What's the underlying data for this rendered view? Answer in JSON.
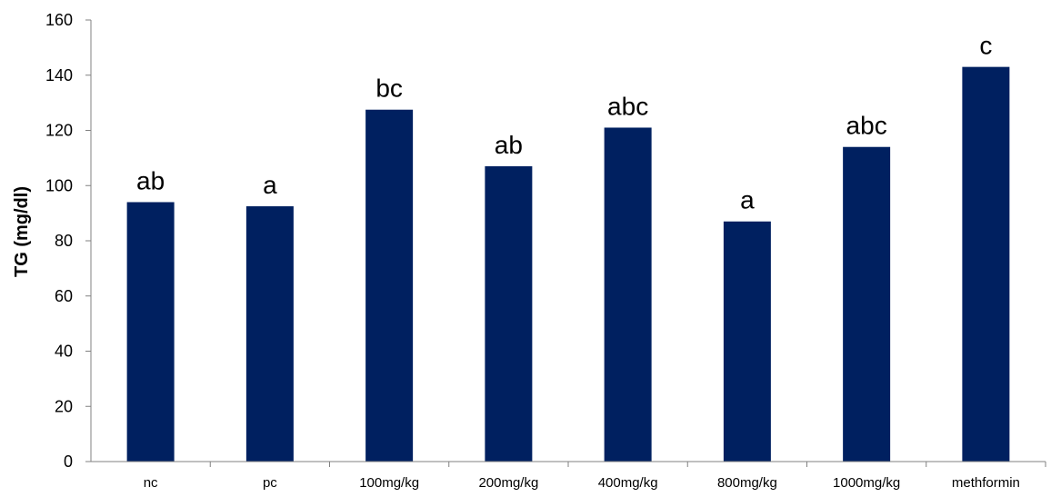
{
  "chart_data": {
    "type": "bar",
    "title": "",
    "xlabel": "",
    "ylabel": "TG (mg/dl)",
    "ylim": [
      0,
      160
    ],
    "yticks": [
      0,
      20,
      40,
      60,
      80,
      100,
      120,
      140,
      160
    ],
    "grid": false,
    "categories": [
      "nc",
      "pc",
      "100mg/kg",
      "200mg/kg",
      "400mg/kg",
      "800mg/kg",
      "1000mg/kg",
      "methformin"
    ],
    "values": [
      94,
      92.5,
      127.5,
      107,
      121,
      87,
      114,
      143
    ],
    "data_labels": [
      "ab",
      "a",
      "bc",
      "ab",
      "abc",
      "a",
      "abc",
      "c"
    ],
    "colors": {
      "bar": "#002060",
      "axis": "#808080",
      "text": "#000000"
    }
  }
}
